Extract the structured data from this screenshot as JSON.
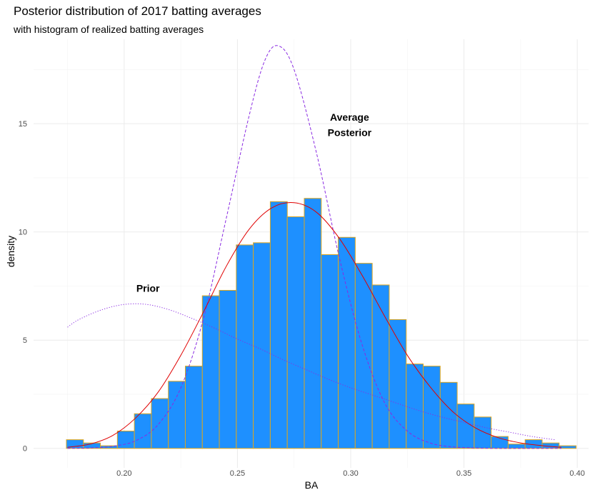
{
  "chart_data": {
    "type": "bar",
    "title": "Posterior distribution of 2017 batting averages",
    "subtitle": "with histogram of realized batting averages",
    "xlabel": "BA",
    "ylabel": "density",
    "xlim": [
      0.16,
      0.405
    ],
    "ylim": [
      -0.9,
      18.9
    ],
    "x_ticks": [
      0.2,
      0.25,
      0.3,
      0.35,
      0.4
    ],
    "x_tick_labels": [
      "0.20",
      "0.25",
      "0.30",
      "0.35",
      "0.40"
    ],
    "y_ticks": [
      0,
      5,
      10,
      15
    ],
    "y_tick_labels": [
      "0",
      "5",
      "10",
      "15"
    ],
    "grid": true,
    "legend": "none",
    "histogram": {
      "bin_width": 0.0075,
      "bin_start": 0.1745,
      "fill": "#1E90FF",
      "outline": "#DAA520",
      "values": [
        0.4,
        0.25,
        0.12,
        0.8,
        1.6,
        2.3,
        3.1,
        3.8,
        7.05,
        7.3,
        9.4,
        9.5,
        11.4,
        10.7,
        11.55,
        8.95,
        9.75,
        8.55,
        7.55,
        5.95,
        3.9,
        3.8,
        3.05,
        2.05,
        1.45,
        0.55,
        0.2,
        0.4,
        0.25,
        0.12
      ]
    },
    "series": [
      {
        "style": "dotted",
        "color": "#8A2BE2",
        "x": [
          0.175,
          0.18,
          0.19,
          0.2,
          0.21,
          0.22,
          0.23,
          0.24,
          0.25,
          0.26,
          0.27,
          0.28,
          0.29,
          0.3,
          0.31,
          0.32,
          0.33,
          0.34,
          0.35,
          0.36,
          0.37,
          0.38,
          0.39
        ],
        "y": [
          5.6,
          5.95,
          6.4,
          6.65,
          6.65,
          6.4,
          6.0,
          5.55,
          5.05,
          4.6,
          4.1,
          3.65,
          3.2,
          2.8,
          2.45,
          2.1,
          1.75,
          1.45,
          1.2,
          0.95,
          0.75,
          0.55,
          0.4
        ]
      },
      {
        "style": "dashed",
        "color": "#8A2BE2",
        "x": [
          0.175,
          0.185,
          0.195,
          0.205,
          0.215,
          0.225,
          0.235,
          0.245,
          0.255,
          0.262,
          0.268,
          0.275,
          0.285,
          0.295,
          0.305,
          0.315,
          0.325,
          0.335,
          0.345,
          0.355,
          0.365,
          0.375,
          0.385,
          0.393
        ],
        "y": [
          0.0,
          0.02,
          0.1,
          0.35,
          1.1,
          2.8,
          6.0,
          10.6,
          15.3,
          17.9,
          18.6,
          17.5,
          13.6,
          8.8,
          4.8,
          2.1,
          0.8,
          0.25,
          0.07,
          0.02,
          0.0,
          0.0,
          0.0,
          0.0
        ]
      },
      {
        "style": "solid",
        "color": "#E00000",
        "x": [
          0.175,
          0.185,
          0.195,
          0.205,
          0.215,
          0.225,
          0.235,
          0.245,
          0.255,
          0.265,
          0.275,
          0.285,
          0.295,
          0.305,
          0.315,
          0.325,
          0.335,
          0.345,
          0.355,
          0.365,
          0.375,
          0.385,
          0.393
        ],
        "y": [
          0.05,
          0.2,
          0.6,
          1.4,
          2.6,
          4.3,
          6.3,
          8.4,
          10.1,
          11.1,
          11.35,
          10.9,
          9.7,
          8.0,
          6.1,
          4.3,
          2.85,
          1.7,
          0.95,
          0.5,
          0.25,
          0.12,
          0.05
        ]
      }
    ],
    "annotations": [
      {
        "text": "Prior",
        "x": 0.2105,
        "y": 7.4
      },
      {
        "text": "Average",
        "x": 0.2995,
        "y": 15.3
      },
      {
        "text": "Posterior",
        "x": 0.2995,
        "y": 14.6
      }
    ]
  }
}
